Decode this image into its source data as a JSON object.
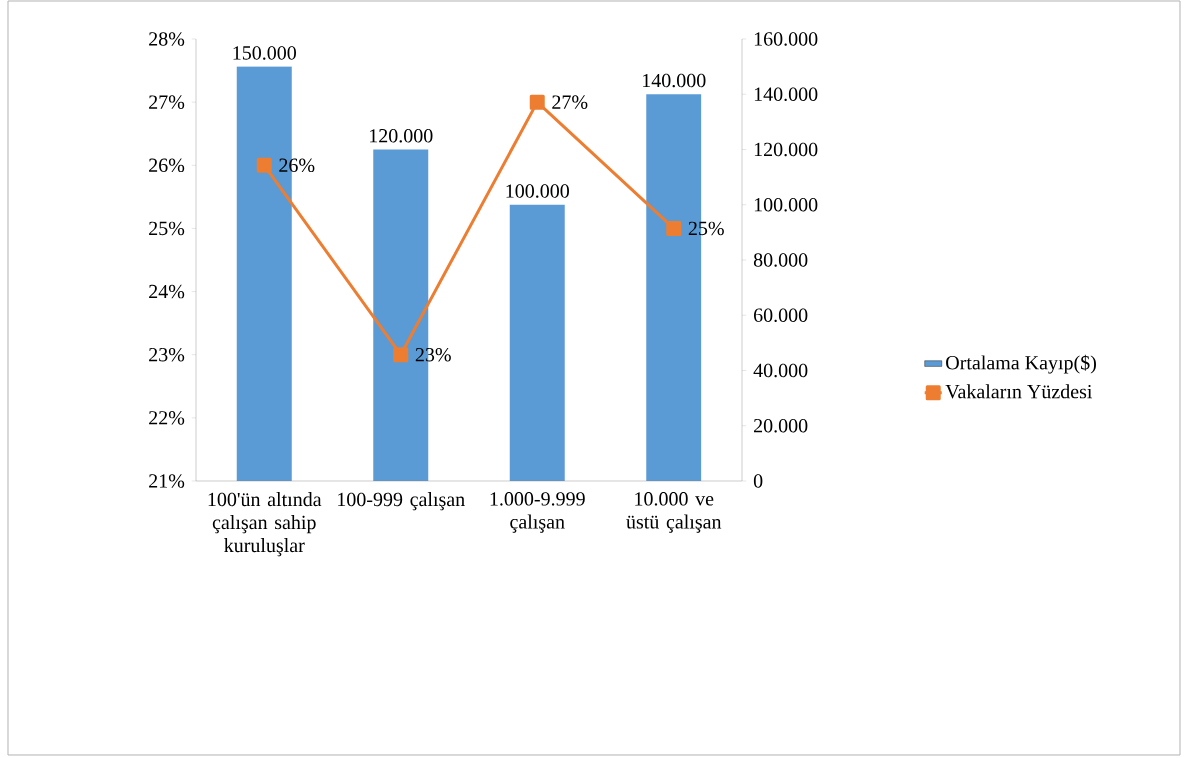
{
  "chart_data": {
    "type": "bar",
    "categories": [
      "100'ün altında çalışan sahip kuruluşlar",
      "100-999 çalışan",
      "1.000-9.999 çalışan",
      "10.000 ve üstü çalışan"
    ],
    "series": [
      {
        "name": "Ortalama Kayıp($)",
        "axis": "y2",
        "color": "#5b9bd5",
        "values": [
          150000,
          120000,
          100000,
          140000
        ],
        "value_labels": [
          "150.000",
          "120.000",
          "100.000",
          "140.000"
        ]
      },
      {
        "name": "Vakaların Yüzdesi",
        "type": "line",
        "axis": "y",
        "color": "#ed7d31",
        "marker": "square",
        "values": [
          26,
          23,
          27,
          25
        ],
        "value_labels": [
          "26%",
          "23%",
          "27%",
          "25%"
        ]
      }
    ],
    "ylim": [
      21,
      28
    ],
    "yticks": [
      {
        "value": 21,
        "label": "21%"
      },
      {
        "value": 22,
        "label": "22%"
      },
      {
        "value": 23,
        "label": "23%"
      },
      {
        "value": 24,
        "label": "24%"
      },
      {
        "value": 25,
        "label": "25%"
      },
      {
        "value": 26,
        "label": "26%"
      },
      {
        "value": 27,
        "label": "27%"
      },
      {
        "value": 28,
        "label": "28%"
      }
    ],
    "y2lim": [
      0,
      160000
    ],
    "y2ticks": [
      {
        "value": 0,
        "label": "0"
      },
      {
        "value": 20000,
        "label": "20.000"
      },
      {
        "value": 40000,
        "label": "40.000"
      },
      {
        "value": 60000,
        "label": "60.000"
      },
      {
        "value": 80000,
        "label": "80.000"
      },
      {
        "value": 100000,
        "label": "100.000"
      },
      {
        "value": 120000,
        "label": "120.000"
      },
      {
        "value": 140000,
        "label": "140.000"
      },
      {
        "value": 160000,
        "label": "160.000"
      }
    ],
    "legend": "right"
  }
}
